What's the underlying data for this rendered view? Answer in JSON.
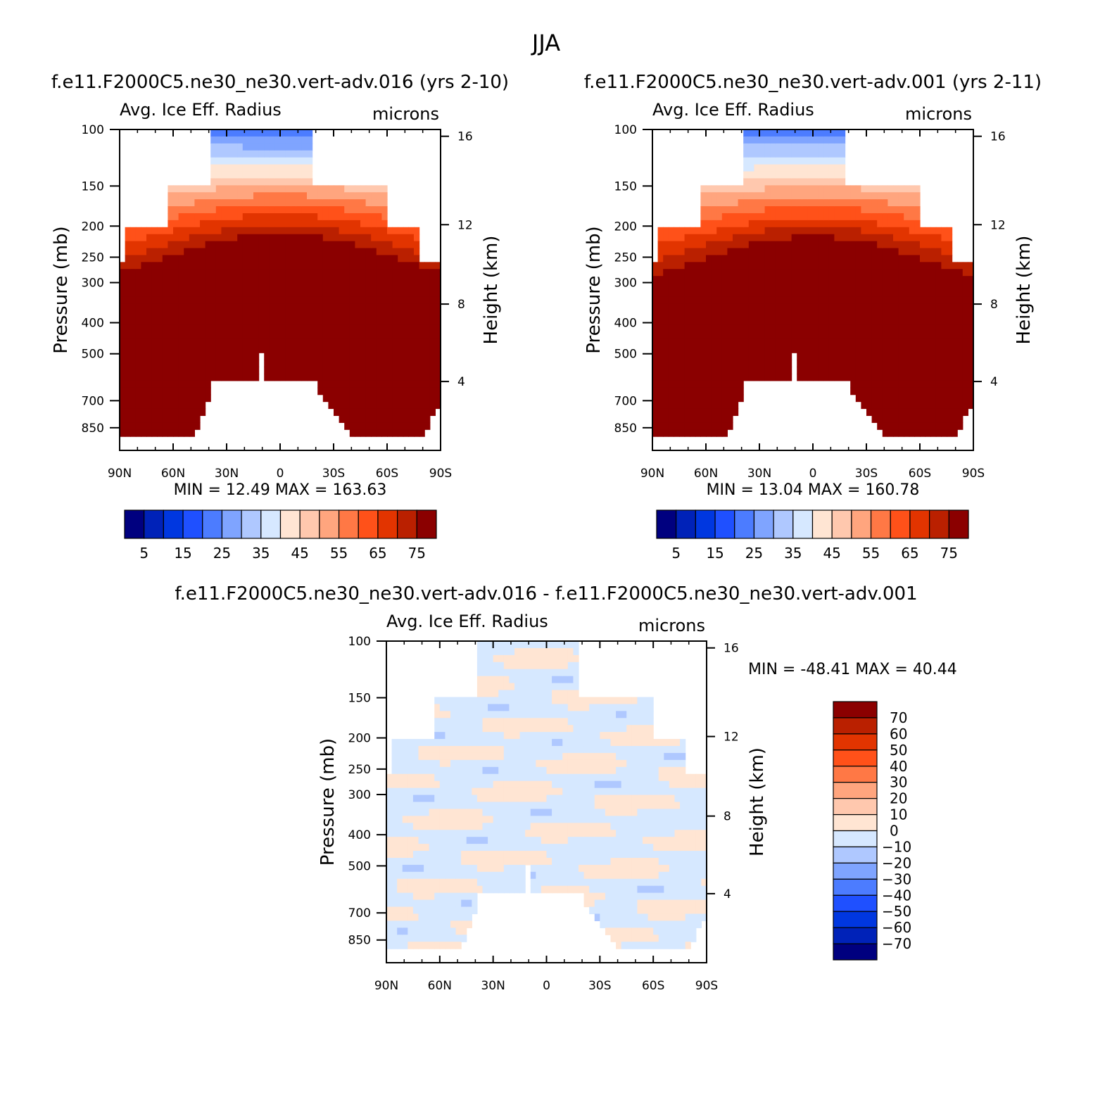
{
  "figure": {
    "season": "JJA",
    "panel_left_case": "f.e11.F2000C5.ne30_ne30.vert-adv.016 (yrs 2-10)",
    "panel_right_case": "f.e11.F2000C5.ne30_ne30.vert-adv.001 (yrs 2-11)",
    "diff_case": "f.e11.F2000C5.ne30_ne30.vert-adv.016 - f.e11.F2000C5.ne30_ne30.vert-adv.001"
  },
  "chart_data": [
    {
      "type": "heatmap",
      "title": "Avg. Ice Eff. Radius",
      "units": "microns",
      "xlabel": "",
      "ylabel": "Pressure (mb)",
      "ylabel_right": "Height (km)",
      "x_ticks": [
        "90N",
        "60N",
        "30N",
        "0",
        "30S",
        "60S",
        "90S"
      ],
      "y_ticks": [
        100,
        150,
        200,
        250,
        300,
        400,
        500,
        700,
        850
      ],
      "height_ticks": [
        4,
        8,
        12,
        16
      ],
      "xlim": [
        90,
        -90
      ],
      "ylim": [
        1000,
        100
      ],
      "y_scale": "log",
      "min_label": "MIN =",
      "min": "12.49",
      "max_label": "MAX =",
      "max": "163.63",
      "colorbar": {
        "orientation": "horizontal",
        "labels": [
          "5",
          "15",
          "25",
          "35",
          "45",
          "55",
          "65",
          "75"
        ],
        "colors": [
          "#00007F",
          "#0022B8",
          "#0037E0",
          "#1F50FF",
          "#4C7CFF",
          "#7FA4FF",
          "#AFC8FF",
          "#D6E8FF",
          "#FFE5D3",
          "#FFC8AE",
          "#FFA57E",
          "#FF7845",
          "#FF5119",
          "#E23400",
          "#BA2000",
          "#8B0000"
        ]
      }
    },
    {
      "type": "heatmap",
      "title": "Avg. Ice Eff. Radius",
      "units": "microns",
      "xlabel": "",
      "ylabel": "Pressure (mb)",
      "ylabel_right": "Height (km)",
      "x_ticks": [
        "90N",
        "60N",
        "30N",
        "0",
        "30S",
        "60S",
        "90S"
      ],
      "y_ticks": [
        100,
        150,
        200,
        250,
        300,
        400,
        500,
        700,
        850
      ],
      "height_ticks": [
        4,
        8,
        12,
        16
      ],
      "xlim": [
        90,
        -90
      ],
      "ylim": [
        1000,
        100
      ],
      "y_scale": "log",
      "min_label": "MIN =",
      "min": "13.04",
      "max_label": "MAX =",
      "max": "160.78",
      "colorbar": {
        "orientation": "horizontal",
        "labels": [
          "5",
          "15",
          "25",
          "35",
          "45",
          "55",
          "65",
          "75"
        ],
        "colors": [
          "#00007F",
          "#0022B8",
          "#0037E0",
          "#1F50FF",
          "#4C7CFF",
          "#7FA4FF",
          "#AFC8FF",
          "#D6E8FF",
          "#FFE5D3",
          "#FFC8AE",
          "#FFA57E",
          "#FF7845",
          "#FF5119",
          "#E23400",
          "#BA2000",
          "#8B0000"
        ]
      }
    },
    {
      "type": "heatmap",
      "title": "Avg. Ice Eff. Radius",
      "units": "microns",
      "xlabel": "",
      "ylabel": "Pressure (mb)",
      "ylabel_right": "Height (km)",
      "x_ticks": [
        "90N",
        "60N",
        "30N",
        "0",
        "30S",
        "60S",
        "90S"
      ],
      "y_ticks": [
        100,
        150,
        200,
        250,
        300,
        400,
        500,
        700,
        850
      ],
      "height_ticks": [
        4,
        8,
        12,
        16
      ],
      "xlim": [
        90,
        -90
      ],
      "ylim": [
        1000,
        100
      ],
      "y_scale": "log",
      "min_label": "MIN =",
      "min": "-48.41",
      "max_label": "MAX =",
      "max": "40.44",
      "colorbar": {
        "orientation": "vertical",
        "labels": [
          "70",
          "60",
          "50",
          "40",
          "30",
          "20",
          "10",
          "0",
          "-10",
          "-20",
          "-30",
          "-40",
          "-50",
          "-60",
          "-70"
        ],
        "colors": [
          "#8B0000",
          "#BA2000",
          "#E23400",
          "#FF5119",
          "#FF7845",
          "#FFA57E",
          "#FFC8AE",
          "#FFE5D3",
          "#D6E8FF",
          "#AFC8FF",
          "#7FA4FF",
          "#4C7CFF",
          "#1F50FF",
          "#0037E0",
          "#0022B8",
          "#00007F"
        ]
      }
    }
  ]
}
